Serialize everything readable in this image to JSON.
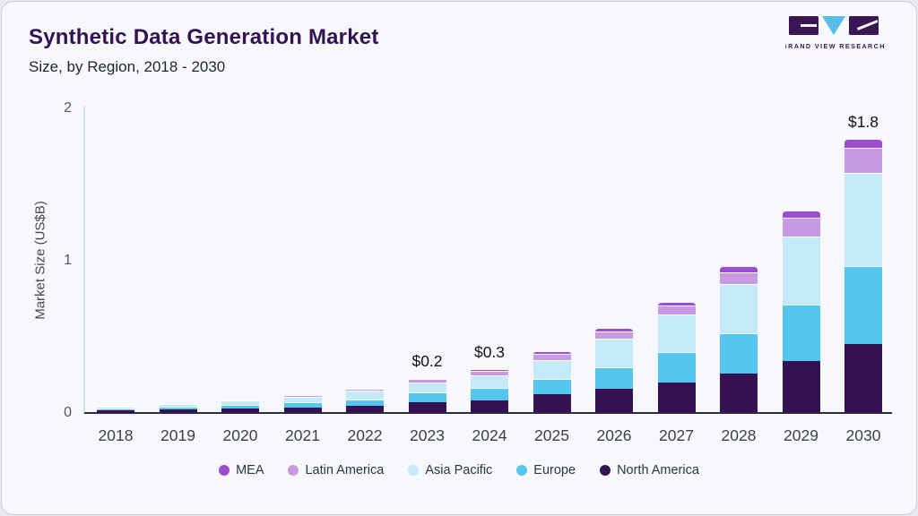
{
  "header": {
    "title": "Synthetic Data Generation Market",
    "subtitle": "Size, by Region, 2018 - 2030",
    "logo_text": "GRAND VIEW RESEARCH"
  },
  "colors": {
    "mea": "#9d4ed0",
    "latin_america": "#c89ae4",
    "asia_pacific": "#c4e9f8",
    "europe": "#55c6ee",
    "north_america": "#351353",
    "panel_background": "#f6f8fb",
    "title_text": "#331253",
    "x_axis_line": "#2b2d38"
  },
  "chart_data": {
    "type": "bar",
    "stacked": true,
    "title": "Synthetic Data Generation Market Size, by Region, 2018 - 2030",
    "xlabel": "",
    "ylabel": "Market Size (US$B)",
    "ylim": [
      0,
      2
    ],
    "yticks": [
      0,
      1,
      2
    ],
    "grid": false,
    "legend_position": "bottom",
    "categories": [
      "2018",
      "2019",
      "2020",
      "2021",
      "2022",
      "2023",
      "2024",
      "2025",
      "2026",
      "2027",
      "2028",
      "2029",
      "2030"
    ],
    "series": [
      {
        "name": "North America",
        "color": "#351353",
        "values": [
          0.016,
          0.022,
          0.03,
          0.036,
          0.047,
          0.07,
          0.08,
          0.125,
          0.16,
          0.2,
          0.26,
          0.34,
          0.455
        ]
      },
      {
        "name": "Europe",
        "color": "#55c6ee",
        "values": [
          0.012,
          0.017,
          0.024,
          0.033,
          0.043,
          0.063,
          0.085,
          0.1,
          0.14,
          0.2,
          0.265,
          0.37,
          0.51
        ]
      },
      {
        "name": "Asia Pacific",
        "color": "#c4e9f8",
        "values": [
          0.012,
          0.018,
          0.026,
          0.038,
          0.056,
          0.065,
          0.08,
          0.12,
          0.19,
          0.245,
          0.32,
          0.45,
          0.61
        ]
      },
      {
        "name": "Latin America",
        "color": "#c89ae4",
        "values": [
          0.004,
          0.006,
          0.008,
          0.01,
          0.014,
          0.024,
          0.03,
          0.045,
          0.048,
          0.06,
          0.08,
          0.12,
          0.165
        ]
      },
      {
        "name": "MEA",
        "color": "#9d4ed0",
        "values": [
          0.002,
          0.003,
          0.004,
          0.005,
          0.006,
          0.01,
          0.012,
          0.018,
          0.02,
          0.027,
          0.037,
          0.05,
          0.062
        ]
      }
    ],
    "legend_order": [
      "MEA",
      "Latin America",
      "Asia Pacific",
      "Europe",
      "North America"
    ],
    "annotations": [
      {
        "category": "2023",
        "label": "$0.2"
      },
      {
        "category": "2024",
        "label": "$0.3"
      },
      {
        "category": "2030",
        "label": "$1.8"
      }
    ]
  }
}
